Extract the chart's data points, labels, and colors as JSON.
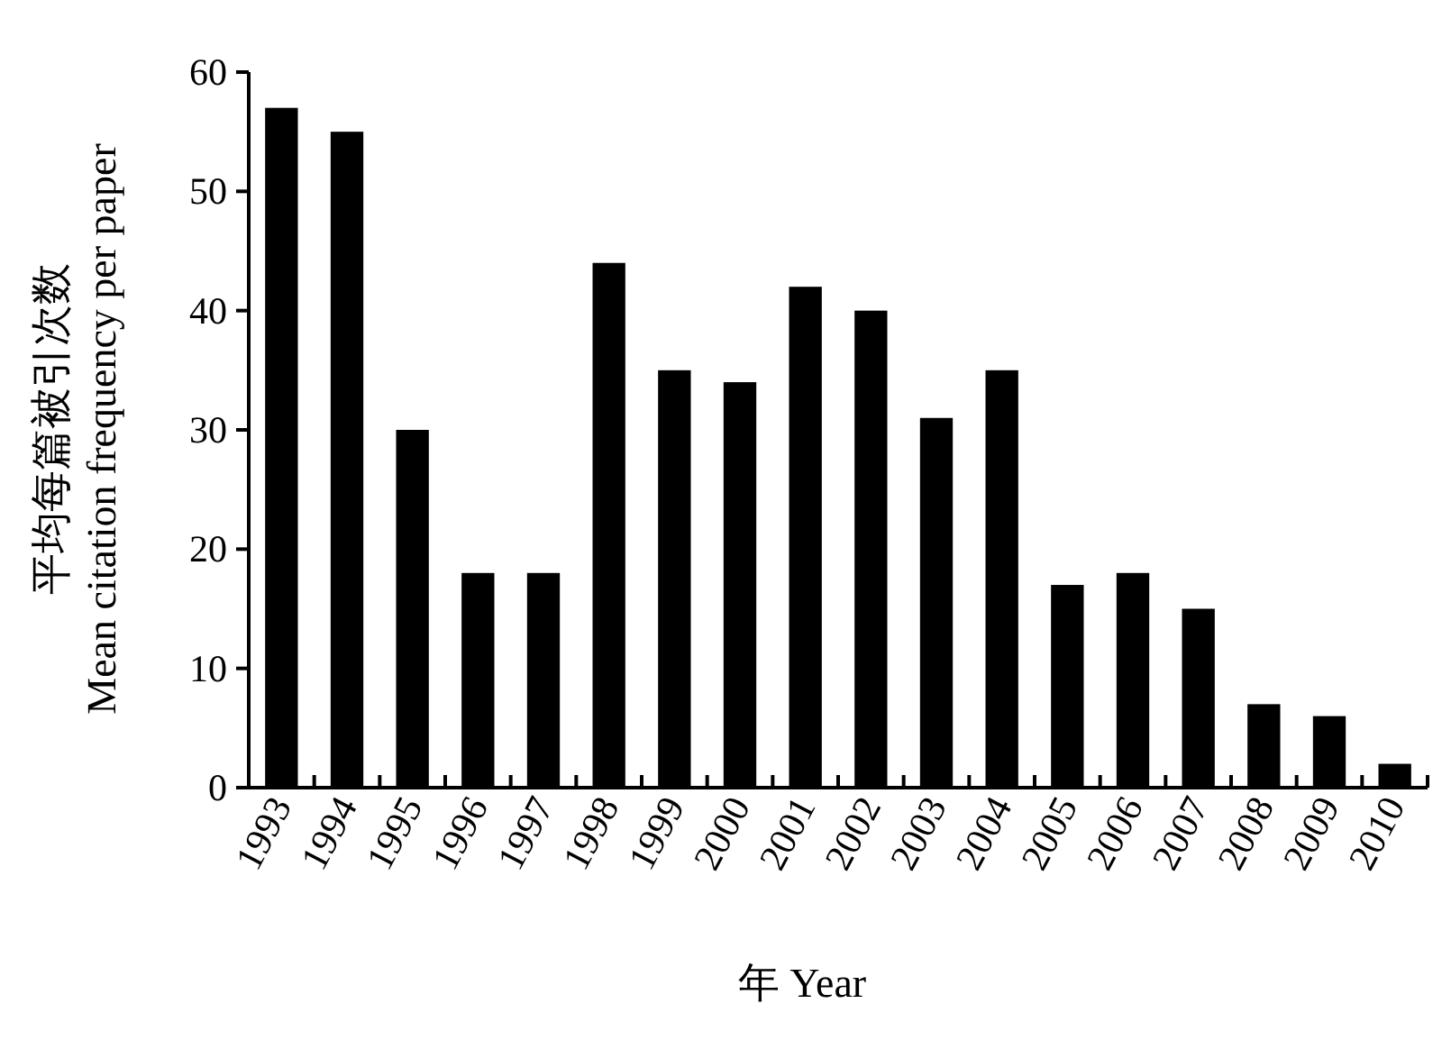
{
  "chart_data": {
    "type": "bar",
    "categories": [
      "1993",
      "1994",
      "1995",
      "1996",
      "1997",
      "1998",
      "1999",
      "2000",
      "2001",
      "2002",
      "2003",
      "2004",
      "2005",
      "2006",
      "2007",
      "2008",
      "2009",
      "2010"
    ],
    "values": [
      57,
      55,
      30,
      18,
      18,
      44,
      35,
      34,
      42,
      40,
      31,
      35,
      17,
      18,
      15,
      7,
      6,
      2
    ],
    "color": "#000000",
    "ylim": [
      0,
      60
    ],
    "yticks": [
      0,
      10,
      20,
      30,
      40,
      50,
      60
    ],
    "ylabel": "平均每篇被引次数\nMean citation frequency per paper",
    "xlabel": "年 Year",
    "grid": false
  }
}
